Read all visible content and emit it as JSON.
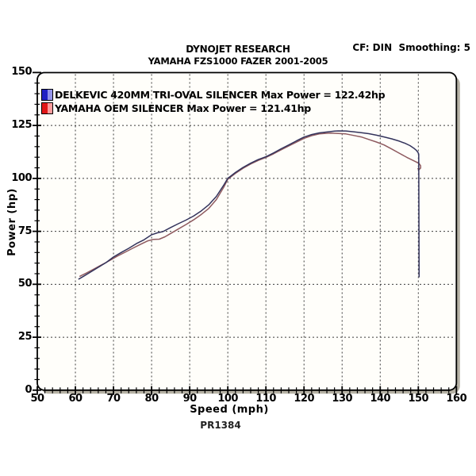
{
  "header": {
    "title": "DYNOJET RESEARCH",
    "subtitle": "YAMAHA FZS1000 FAZER 2001-2005",
    "correction_note": "CF: DIN  Smoothing: 5"
  },
  "footer": {
    "run_id": "PR1384"
  },
  "colors": {
    "frame_stroke": "#000000",
    "frame_fill": "#fffefa",
    "frame_shadow": "#b5b1a4",
    "grid": "#3c3c3c"
  },
  "chart_data": {
    "type": "line",
    "title": "DYNOJET RESEARCH",
    "subtitle": "YAMAHA FZS1000 FAZER 2001-2005",
    "annotation": "CF: DIN  Smoothing: 5",
    "footer": "PR1384",
    "grid": "dashed major gridlines, both axes",
    "legend_position": "top-left inside plot",
    "x_axis": {
      "label": "Speed (mph)",
      "min": 50,
      "max": 160,
      "major_tick_step": 10,
      "minor_tick_step": 2,
      "tick_labels": [
        "50",
        "60",
        "70",
        "80",
        "90",
        "100",
        "110",
        "120",
        "130",
        "140",
        "150",
        "160"
      ]
    },
    "y_axis": {
      "label": "Power (hp)",
      "min": 0,
      "max": 150,
      "major_tick_step": 25,
      "minor_tick_step": 5,
      "tick_labels": [
        "0",
        "25",
        "50",
        "75",
        "100",
        "125",
        "150"
      ]
    },
    "series": [
      {
        "name": "DELKEVIC 420MM TRI-OVAL SILENCER",
        "legend_label": "DELKEVIC 420MM TRI-OVAL SILENCER Max Power = 122.42hp",
        "max_power_hp": 122.42,
        "color": "#33335c",
        "swatch_colors": [
          "#2020c4",
          "#9494ea"
        ],
        "points": [
          [
            60.9,
            52.5
          ],
          [
            62,
            53.6
          ],
          [
            64,
            55.8
          ],
          [
            66,
            58.0
          ],
          [
            68,
            60.2
          ],
          [
            70,
            62.9
          ],
          [
            72,
            65.0
          ],
          [
            74,
            67.0
          ],
          [
            76,
            69.2
          ],
          [
            78,
            71.0
          ],
          [
            80,
            73.4
          ],
          [
            81.5,
            74.3
          ],
          [
            83,
            74.9
          ],
          [
            85,
            76.8
          ],
          [
            87,
            78.6
          ],
          [
            89,
            80.3
          ],
          [
            91,
            82.2
          ],
          [
            93,
            84.6
          ],
          [
            95,
            87.5
          ],
          [
            97,
            91.5
          ],
          [
            99,
            97.0
          ],
          [
            100,
            100.0
          ],
          [
            102,
            102.8
          ],
          [
            104,
            105.2
          ],
          [
            106,
            107.2
          ],
          [
            108,
            108.9
          ],
          [
            110,
            110.2
          ],
          [
            112,
            112.0
          ],
          [
            114,
            114.0
          ],
          [
            116,
            115.8
          ],
          [
            118,
            117.7
          ],
          [
            120,
            119.5
          ],
          [
            122,
            120.7
          ],
          [
            124,
            121.5
          ],
          [
            126,
            121.9
          ],
          [
            128,
            122.3
          ],
          [
            129,
            122.42
          ],
          [
            131,
            122.4
          ],
          [
            133,
            122.0
          ],
          [
            135,
            121.6
          ],
          [
            137,
            121.1
          ],
          [
            139,
            120.4
          ],
          [
            141,
            119.6
          ],
          [
            143,
            118.7
          ],
          [
            145,
            117.6
          ],
          [
            146.5,
            116.6
          ],
          [
            147.8,
            115.5
          ],
          [
            148.8,
            114.3
          ],
          [
            149.5,
            113.2
          ],
          [
            149.9,
            112.3
          ],
          [
            150.1,
            111.5
          ],
          [
            150.2,
            53.5
          ]
        ]
      },
      {
        "name": "YAMAHA OEM SILENCER",
        "legend_label": "YAMAHA OEM SILENCER Max Power = 121.41hp",
        "max_power_hp": 121.41,
        "color": "#8e5a5f",
        "swatch_colors": [
          "#e01818",
          "#ff9c9c"
        ],
        "points": [
          [
            61.2,
            53.8
          ],
          [
            63,
            55.4
          ],
          [
            65,
            57.3
          ],
          [
            67,
            59.3
          ],
          [
            69,
            61.2
          ],
          [
            71,
            63.3
          ],
          [
            73,
            65.1
          ],
          [
            75,
            67.0
          ],
          [
            77,
            68.8
          ],
          [
            79,
            70.5
          ],
          [
            80.5,
            71.2
          ],
          [
            82,
            71.3
          ],
          [
            83.5,
            72.4
          ],
          [
            85,
            74.0
          ],
          [
            87,
            76.1
          ],
          [
            89,
            78.2
          ],
          [
            91,
            80.4
          ],
          [
            93,
            82.9
          ],
          [
            95,
            85.8
          ],
          [
            97,
            90.0
          ],
          [
            99,
            96.0
          ],
          [
            100,
            99.6
          ],
          [
            102,
            102.4
          ],
          [
            104,
            104.8
          ],
          [
            106,
            106.8
          ],
          [
            108,
            108.5
          ],
          [
            110,
            109.9
          ],
          [
            112,
            111.6
          ],
          [
            114,
            113.5
          ],
          [
            116,
            115.3
          ],
          [
            118,
            117.1
          ],
          [
            120,
            118.9
          ],
          [
            122,
            120.2
          ],
          [
            124,
            121.0
          ],
          [
            126,
            121.3
          ],
          [
            127,
            121.41
          ],
          [
            129,
            121.2
          ],
          [
            131,
            121.0
          ],
          [
            133,
            120.3
          ],
          [
            135,
            119.6
          ],
          [
            137,
            118.4
          ],
          [
            139,
            117.2
          ],
          [
            141,
            115.8
          ],
          [
            143,
            113.9
          ],
          [
            145,
            111.9
          ],
          [
            147,
            109.9
          ],
          [
            148.5,
            108.6
          ],
          [
            149.5,
            107.7
          ],
          [
            150.2,
            107.0
          ],
          [
            150.6,
            106.0
          ],
          [
            150.6,
            104.9
          ],
          [
            150.2,
            104.2
          ],
          [
            149.9,
            104.6
          ]
        ]
      }
    ]
  }
}
